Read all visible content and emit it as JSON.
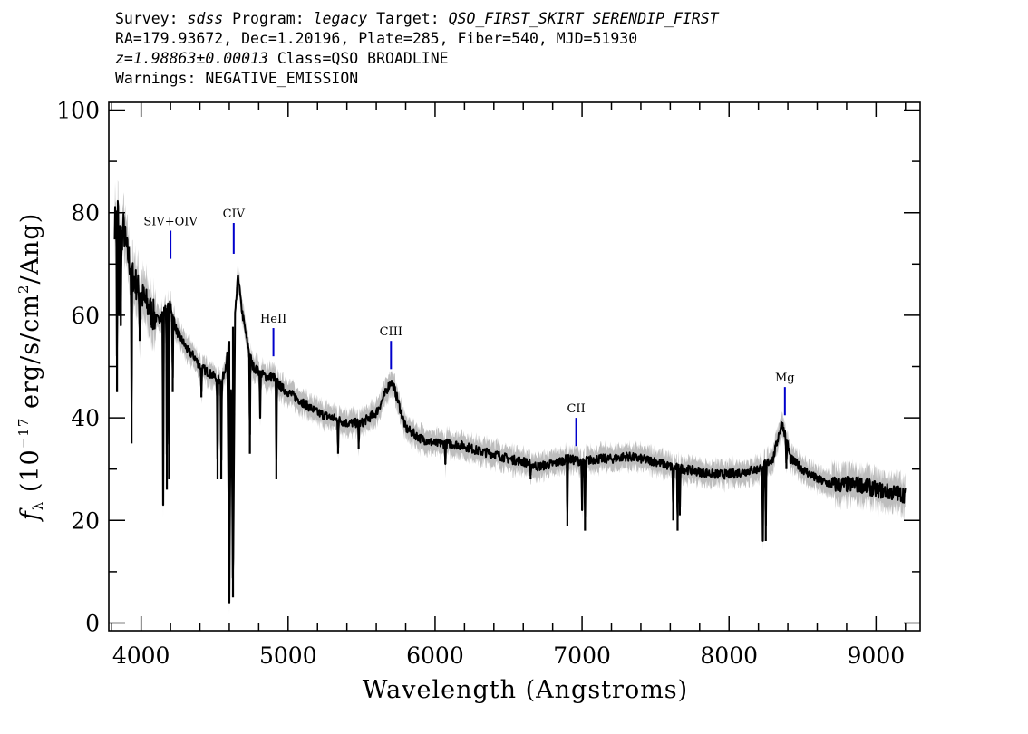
{
  "header": {
    "line1": {
      "survey_label": "Survey: ",
      "survey": "sdss",
      "program_label": " Program: ",
      "program": "legacy",
      "target_label": " Target: ",
      "target": "QSO_FIRST_SKIRT SERENDIP_FIRST"
    },
    "line2": "RA=179.93672, Dec=1.20196, Plate=285, Fiber=540, MJD=51930",
    "line3": {
      "redshift": "z=1.98863±0.00013",
      "class": " Class=QSO BROADLINE"
    },
    "line4": "Warnings: NEGATIVE_EMISSION"
  },
  "colors": {
    "flux": "#000000",
    "error_band": "#bdbdbd",
    "line_marker": "#0000cc",
    "axes": "#000000"
  },
  "chart_data": {
    "type": "line",
    "xlabel": "Wavelength (Angstroms)",
    "ylabel": "f_λ (10^-17 erg/s/cm^2/Ang)",
    "ylabel_parts": {
      "f": "f",
      "lambda": "λ",
      "open": " (10",
      "exp1": "−17",
      "mid": " erg/s/cm",
      "exp2": "2",
      "close": "/Ang)"
    },
    "xlim": [
      3780,
      9300
    ],
    "ylim": [
      -1.5,
      101.5
    ],
    "x_ticks": [
      4000,
      5000,
      6000,
      7000,
      8000,
      9000
    ],
    "y_ticks": [
      0,
      20,
      40,
      60,
      80,
      100
    ],
    "x_minor_step": 200,
    "y_minor_step": 10,
    "series": [
      {
        "x": [
          3820,
          3840,
          3860,
          3880,
          3900,
          3940,
          3980,
          4000,
          4040,
          4080,
          4120,
          4160,
          4200,
          4240,
          4280,
          4320,
          4360,
          4400,
          4450,
          4500,
          4550,
          4580,
          4600,
          4620,
          4640,
          4660,
          4680,
          4720,
          4760,
          4800,
          4850,
          4900,
          4950,
          5000,
          5050,
          5100,
          5150,
          5200,
          5300,
          5400,
          5500,
          5550,
          5600,
          5650,
          5680,
          5700,
          5720,
          5750,
          5800,
          5850,
          5900,
          6000,
          6100,
          6200,
          6300,
          6400,
          6500,
          6600,
          6700,
          6800,
          6900,
          7000,
          7100,
          7200,
          7300,
          7400,
          7500,
          7600,
          7700,
          7800,
          7900,
          8000,
          8100,
          8200,
          8300,
          8340,
          8360,
          8380,
          8420,
          8500,
          8600,
          8700,
          8800,
          8900,
          9000,
          9100,
          9200
        ],
        "y": [
          78,
          81,
          74,
          77,
          73,
          68,
          65,
          64,
          62,
          60,
          59,
          61,
          62,
          57,
          55,
          53,
          52,
          50,
          49,
          48,
          47,
          51,
          55,
          57,
          60,
          68,
          62,
          55,
          50,
          49,
          48,
          48,
          46,
          45,
          44,
          43,
          42,
          41,
          40,
          39,
          39,
          40,
          41,
          44,
          46,
          47,
          46,
          43,
          38,
          37,
          36,
          35,
          35,
          34.5,
          33.5,
          33,
          32,
          31.5,
          30.5,
          31,
          32,
          31.5,
          32,
          32,
          32.5,
          32,
          31.5,
          30.5,
          30,
          29.5,
          29,
          29,
          29.5,
          30,
          32,
          37,
          39,
          37,
          32,
          30,
          28,
          27,
          27,
          27,
          26,
          25.5,
          25
        ]
      }
    ],
    "absorption_features": [
      {
        "x": 3836,
        "y": 45
      },
      {
        "x": 3850,
        "y": 60
      },
      {
        "x": 3862,
        "y": 58
      },
      {
        "x": 3935,
        "y": 35
      },
      {
        "x": 3990,
        "y": 55
      },
      {
        "x": 4150,
        "y": 23
      },
      {
        "x": 4175,
        "y": 26
      },
      {
        "x": 4190,
        "y": 28
      },
      {
        "x": 4215,
        "y": 45
      },
      {
        "x": 4410,
        "y": 44
      },
      {
        "x": 4520,
        "y": 28
      },
      {
        "x": 4545,
        "y": 28
      },
      {
        "x": 4600,
        "y": 4
      },
      {
        "x": 4625,
        "y": 5
      },
      {
        "x": 4740,
        "y": 33
      },
      {
        "x": 4810,
        "y": 40
      },
      {
        "x": 4920,
        "y": 28
      },
      {
        "x": 5340,
        "y": 33
      },
      {
        "x": 5480,
        "y": 34
      },
      {
        "x": 6070,
        "y": 31
      },
      {
        "x": 6650,
        "y": 28
      },
      {
        "x": 6900,
        "y": 19
      },
      {
        "x": 7000,
        "y": 22
      },
      {
        "x": 7020,
        "y": 18
      },
      {
        "x": 7620,
        "y": 20
      },
      {
        "x": 7650,
        "y": 18
      },
      {
        "x": 7665,
        "y": 21
      },
      {
        "x": 8230,
        "y": 16
      },
      {
        "x": 8250,
        "y": 16
      },
      {
        "x": 8390,
        "y": 30
      },
      {
        "x": 9130,
        "y": 25
      }
    ],
    "line_labels": [
      {
        "name": "SIV+OIV",
        "x": 4200,
        "y_bottom": 71,
        "y_top": 76.5
      },
      {
        "name": "CIV",
        "x": 4630,
        "y_bottom": 72,
        "y_top": 78
      },
      {
        "name": "HeII",
        "x": 4900,
        "y_bottom": 52,
        "y_top": 57.5
      },
      {
        "name": "CIII",
        "x": 5700,
        "y_bottom": 49.5,
        "y_top": 55
      },
      {
        "name": "CII",
        "x": 6960,
        "y_bottom": 34.5,
        "y_top": 40
      },
      {
        "name": "Mg",
        "x": 8380,
        "y_bottom": 40.5,
        "y_top": 46
      }
    ]
  }
}
